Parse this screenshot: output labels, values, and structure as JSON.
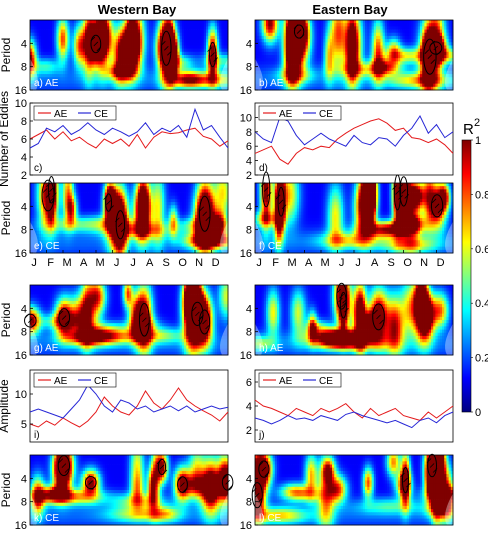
{
  "columns": [
    "Western Bay",
    "Eastern Bay"
  ],
  "months": [
    "J",
    "F",
    "M",
    "A",
    "M",
    "J",
    "J",
    "A",
    "S",
    "O",
    "N",
    "D"
  ],
  "colorbar": {
    "label": "R",
    "label_sup": "2",
    "ticks": [
      "1",
      "0.8",
      "0.6",
      "0.4",
      "0.2",
      "0"
    ],
    "ramp": [
      "#00007f",
      "#0000ff",
      "#0080ff",
      "#00ffff",
      "#80ff80",
      "#ffff00",
      "#ff8000",
      "#ff0000",
      "#7f0000"
    ]
  },
  "axis_labels": {
    "period": "Period",
    "eddies": "Number of Eddies",
    "amplitude": "Amplitude"
  },
  "chart_data": [
    {
      "type": "heatmap",
      "panel": "a) AE",
      "title": "Western Bay",
      "ylabel": "Period",
      "yticks": [
        "4",
        "8",
        "16"
      ],
      "yscale": "log2",
      "ylim": [
        2,
        16
      ]
    },
    {
      "type": "heatmap",
      "panel": "b) AE",
      "title": "Eastern Bay",
      "yticks": [
        "4",
        "8",
        "16"
      ],
      "yscale": "log2",
      "ylim": [
        2,
        16
      ]
    },
    {
      "type": "line",
      "panel": "c)",
      "ylabel": "Number of Eddies",
      "ylim": [
        2,
        10
      ],
      "yticks": [
        "2",
        "4",
        "6",
        "8",
        "10"
      ],
      "legend": [
        "AE",
        "CE"
      ],
      "colors": {
        "AE": "#e41a1c",
        "CE": "#2727d6"
      },
      "series": [
        {
          "name": "AE",
          "x": [
            0,
            0.5,
            1,
            1.5,
            2,
            2.5,
            3,
            3.5,
            4,
            4.5,
            5,
            5.5,
            6,
            6.5,
            7,
            7.5,
            8,
            8.5,
            9,
            9.5,
            10,
            10.5,
            11,
            11.5,
            12
          ],
          "values": [
            6,
            6.5,
            7,
            6,
            6.8,
            5.8,
            6.2,
            5.5,
            5,
            6,
            5.5,
            6,
            5.2,
            6.5,
            5,
            6.2,
            6.8,
            6.6,
            6.7,
            7,
            7.2,
            6.3,
            6,
            5.2,
            5.8
          ]
        },
        {
          "name": "CE",
          "x": [
            0,
            0.5,
            1,
            1.5,
            2,
            2.5,
            3,
            3.5,
            4,
            4.5,
            5,
            5.5,
            6,
            6.5,
            7,
            7.5,
            8,
            8.5,
            9,
            9.5,
            10,
            10.5,
            11,
            11.5,
            12
          ],
          "values": [
            5,
            5.5,
            7.2,
            6.8,
            7.5,
            6.5,
            7,
            7.8,
            7,
            6.5,
            7.2,
            6.8,
            6.3,
            6.8,
            7.8,
            6.5,
            7.2,
            6.8,
            7.5,
            6.2,
            9.3,
            7,
            7.5,
            6.2,
            5
          ]
        }
      ]
    },
    {
      "type": "line",
      "panel": "d)",
      "ylim": [
        2,
        12
      ],
      "yticks": [
        "2",
        "4",
        "6",
        "8",
        "10"
      ],
      "legend": [
        "AE",
        "CE"
      ],
      "colors": {
        "AE": "#e41a1c",
        "CE": "#2727d6"
      },
      "series": [
        {
          "name": "AE",
          "x": [
            0,
            0.5,
            1,
            1.5,
            2,
            2.5,
            3,
            3.5,
            4,
            4.5,
            5,
            5.5,
            6,
            6.5,
            7,
            7.5,
            8,
            8.5,
            9,
            9.5,
            10,
            10.5,
            11,
            11.5,
            12
          ],
          "values": [
            5,
            5.5,
            6,
            4.2,
            3.5,
            5,
            5.8,
            5.5,
            6,
            5.8,
            7,
            7.8,
            8.5,
            9,
            9.5,
            9.8,
            9.2,
            8.2,
            8.5,
            7.2,
            7,
            6.5,
            7,
            6.2,
            5
          ]
        },
        {
          "name": "CE",
          "x": [
            0,
            0.5,
            1,
            1.5,
            2,
            2.5,
            3,
            3.5,
            4,
            4.5,
            5,
            5.5,
            6,
            6.5,
            7,
            7.5,
            8,
            8.5,
            9,
            9.5,
            10,
            10.5,
            11,
            11.5,
            12
          ],
          "values": [
            8,
            7,
            6.5,
            10,
            9.5,
            7.5,
            6.2,
            7,
            7.8,
            7,
            6.5,
            6,
            7.5,
            6.5,
            6.2,
            7.2,
            7,
            6,
            7.5,
            8.5,
            10.2,
            7.8,
            9,
            7.2,
            8
          ]
        }
      ]
    },
    {
      "type": "heatmap",
      "panel": "e) CE",
      "ylabel": "Period",
      "yticks": [
        "4",
        "8",
        "16"
      ],
      "yscale": "log2",
      "ylim": [
        2,
        16
      ],
      "xticks": [
        "J",
        "F",
        "M",
        "A",
        "M",
        "J",
        "J",
        "A",
        "S",
        "O",
        "N",
        "D"
      ]
    },
    {
      "type": "heatmap",
      "panel": "f) CE",
      "yticks": [
        "4",
        "8",
        "16"
      ],
      "yscale": "log2",
      "ylim": [
        2,
        16
      ],
      "xticks": [
        "J",
        "F",
        "M",
        "A",
        "M",
        "J",
        "J",
        "A",
        "S",
        "O",
        "N",
        "D"
      ]
    },
    {
      "type": "heatmap",
      "panel": "g) AE",
      "ylabel": "Period",
      "yticks": [
        "4",
        "8",
        "16"
      ],
      "yscale": "log2",
      "ylim": [
        2,
        16
      ]
    },
    {
      "type": "heatmap",
      "panel": "h) AE",
      "yticks": [
        "4",
        "8",
        "16"
      ],
      "yscale": "log2",
      "ylim": [
        2,
        16
      ]
    },
    {
      "type": "line",
      "panel": "i)",
      "ylabel": "Amplitude",
      "ylim": [
        2,
        14
      ],
      "yticks": [
        "5",
        "10"
      ],
      "legend": [
        "AE",
        "CE"
      ],
      "colors": {
        "AE": "#e41a1c",
        "CE": "#2727d6"
      },
      "series": [
        {
          "name": "AE",
          "x": [
            0,
            0.5,
            1,
            1.5,
            2,
            2.5,
            3,
            3.5,
            4,
            4.5,
            5,
            5.5,
            6,
            6.5,
            7,
            7.5,
            8,
            8.5,
            9,
            9.5,
            10,
            10.5,
            11,
            11.5,
            12
          ],
          "values": [
            5,
            4.5,
            5.5,
            4.8,
            6,
            5.2,
            4.5,
            5.5,
            7,
            9.5,
            8,
            7,
            6.5,
            8,
            10.5,
            8.5,
            7.5,
            9,
            11,
            9,
            8,
            7.2,
            6.5,
            5.5,
            7
          ]
        },
        {
          "name": "CE",
          "x": [
            0,
            0.5,
            1,
            1.5,
            2,
            2.5,
            3,
            3.5,
            4,
            4.5,
            5,
            5.5,
            6,
            6.5,
            7,
            7.5,
            8,
            8.5,
            9,
            9.5,
            10,
            10.5,
            11,
            11.5,
            12
          ],
          "values": [
            7,
            7.5,
            7,
            6.5,
            6,
            7.5,
            9,
            11.5,
            10,
            8,
            7,
            9,
            8.5,
            7.5,
            8,
            7,
            7.5,
            8,
            7.2,
            8,
            7,
            7.5,
            8,
            7.5,
            7.8
          ]
        }
      ]
    },
    {
      "type": "line",
      "panel": "j)",
      "ylim": [
        1,
        7
      ],
      "yticks": [
        "2",
        "4",
        "6"
      ],
      "legend": [
        "AE",
        "CE"
      ],
      "colors": {
        "AE": "#e41a1c",
        "CE": "#2727d6"
      },
      "series": [
        {
          "name": "AE",
          "x": [
            0,
            0.5,
            1,
            1.5,
            2,
            2.5,
            3,
            3.5,
            4,
            4.5,
            5,
            5.5,
            6,
            6.5,
            7,
            7.5,
            8,
            8.5,
            9,
            9.5,
            10,
            10.5,
            11,
            11.5,
            12
          ],
          "values": [
            4.5,
            4,
            3.8,
            3.5,
            3.2,
            3.8,
            3.5,
            3.2,
            3.8,
            3.5,
            3.8,
            4.2,
            3.5,
            3,
            3.8,
            3.2,
            3.5,
            3.8,
            3.2,
            3,
            2.8,
            3.5,
            3,
            3.5,
            4
          ]
        },
        {
          "name": "CE",
          "x": [
            0,
            0.5,
            1,
            1.5,
            2,
            2.5,
            3,
            3.5,
            4,
            4.5,
            5,
            5.5,
            6,
            6.5,
            7,
            7.5,
            8,
            8.5,
            9,
            9.5,
            10,
            10.5,
            11,
            11.5,
            12
          ],
          "values": [
            3,
            2.8,
            2.5,
            2.8,
            3.2,
            2.9,
            3,
            2.8,
            3.2,
            3,
            2.8,
            3.3,
            3.5,
            3.2,
            3,
            2.8,
            2.6,
            2.8,
            2.5,
            2.2,
            2.8,
            3,
            2.6,
            3.2,
            3.5
          ]
        }
      ]
    },
    {
      "type": "heatmap",
      "panel": "k) CE",
      "ylabel": "Period",
      "yticks": [
        "4",
        "8",
        "16"
      ],
      "yscale": "log2",
      "ylim": [
        2,
        16
      ]
    },
    {
      "type": "heatmap",
      "panel": "l) CE",
      "yticks": [
        "4",
        "8",
        "16"
      ],
      "yscale": "log2",
      "ylim": [
        2,
        16
      ]
    }
  ]
}
